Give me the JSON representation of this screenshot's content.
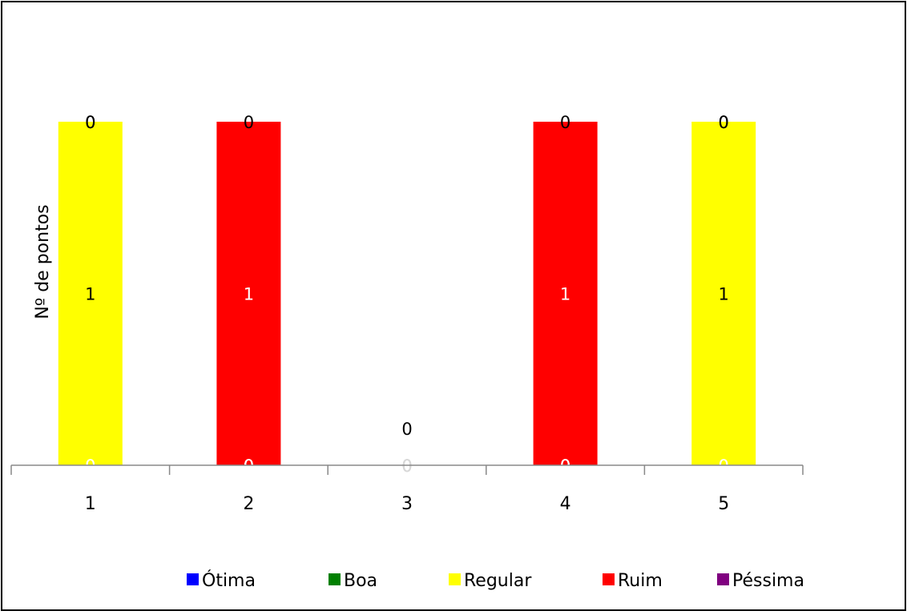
{
  "chart_data": {
    "type": "bar",
    "stacked": true,
    "categories": [
      "1",
      "2",
      "3",
      "4",
      "5"
    ],
    "ylabel": "Nº de pontos",
    "xlabel": "",
    "title": "",
    "legend_position": "bottom",
    "series": [
      {
        "name": "Ótima",
        "color": "#0000FF",
        "values": [
          0,
          0,
          0,
          0,
          0
        ],
        "label_text": "0"
      },
      {
        "name": "Boa",
        "color": "#008000",
        "values": [
          0,
          0,
          0,
          0,
          0
        ],
        "label_text": "0"
      },
      {
        "name": "Regular",
        "color": "#FFFF00",
        "values": [
          1,
          0,
          0,
          0,
          1
        ],
        "label_text": "1"
      },
      {
        "name": "Ruim",
        "color": "#FF0000",
        "values": [
          0,
          1,
          0,
          1,
          0
        ],
        "label_text": "1"
      },
      {
        "name": "Péssima",
        "color": "#800080",
        "values": [
          0,
          0,
          0,
          0,
          0
        ],
        "label_text": "0"
      }
    ],
    "ylim": [
      0,
      1
    ],
    "grid": false
  }
}
